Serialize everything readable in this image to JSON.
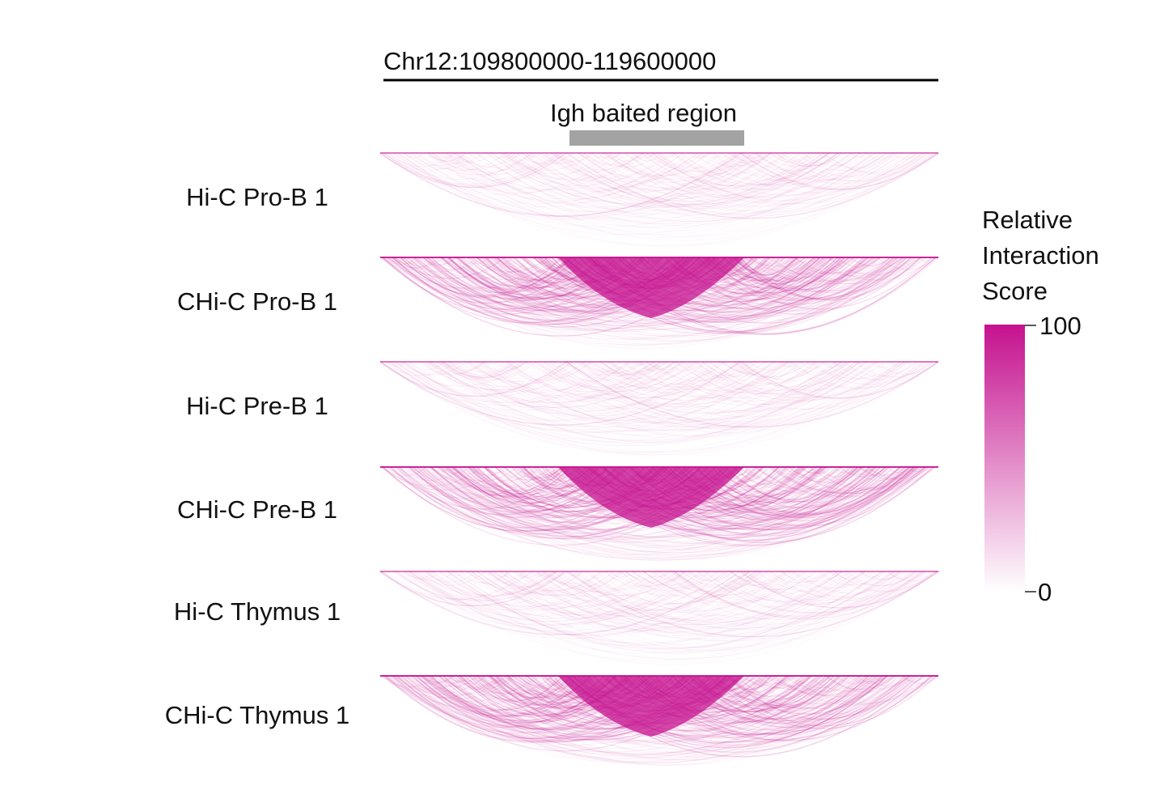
{
  "region": {
    "label": "Chr12:109800000-119600000",
    "bait_label": "Igh baited region"
  },
  "tracks": [
    {
      "label": "Hi-C Pro-B 1",
      "kind": "hic"
    },
    {
      "label": "CHi-C Pro-B 1",
      "kind": "chic"
    },
    {
      "label": "Hi-C Pre-B 1",
      "kind": "hic"
    },
    {
      "label": "CHi-C Pre-B 1",
      "kind": "chic"
    },
    {
      "label": "Hi-C Thymus 1",
      "kind": "hic"
    },
    {
      "label": "CHi-C Thymus 1",
      "kind": "chic"
    }
  ],
  "legend": {
    "title_lines": [
      "Relative",
      "Interaction",
      "Score"
    ],
    "max_label": "100",
    "min_label": "0",
    "color_high": "#c5118f",
    "color_low": "#ffffff"
  },
  "colors": {
    "arc": "#c5118f",
    "bait_bar": "#a3a3a3",
    "axis_line": "#000000"
  }
}
